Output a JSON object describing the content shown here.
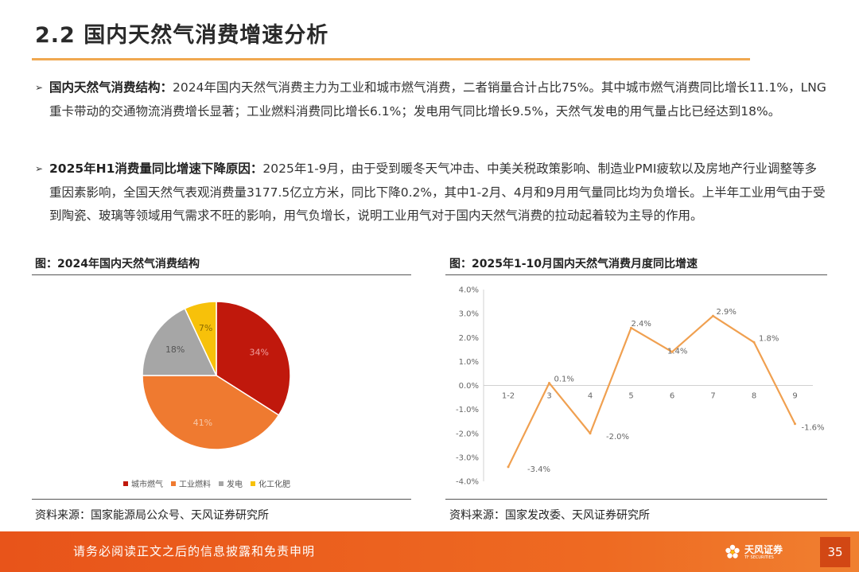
{
  "slide": {
    "title": "2.2 国内天然气消费增速分析",
    "page_number": "35"
  },
  "bullets": [
    {
      "head": "国内天然气消费结构：",
      "body": "2024年国内天然气消费主力为工业和城市燃气消费，二者销量合计占比75%。其中城市燃气消费同比增长11.1%，LNG重卡带动的交通物流消费增长显著；工业燃料消费同比增长6.1%；发电用气同比增长9.5%，天然气发电的用气量占比已经达到18%。"
    },
    {
      "head": "2025年H1消费量同比增速下降原因：",
      "body": "2025年1-9月，由于受到暖冬天气冲击、中美关税政策影响、制造业PMI疲软以及房地产行业调整等多重因素影响，全国天然气表观消费量3177.5亿立方米，同比下降0.2%，其中1-2月、4月和9月用气量同比均为负增长。上半年工业用气由于受到陶瓷、玻璃等领域用气需求不旺的影响，用气负增长，说明工业用气对于国内天然气消费的拉动起着较为主导的作用。"
    }
  ],
  "figures": {
    "left": {
      "caption": "图：2024年国内天然气消费结构",
      "source": "资料来源：国家能源局公众号、天风证券研究所"
    },
    "right": {
      "caption": "图：2025年1-10月国内天然气消费月度同比增速",
      "source": "资料来源：国家发改委、天风证券研究所"
    }
  },
  "footer": {
    "disclaimer": "请务必阅读正文之后的信息披露和免责申明",
    "logo_cn": "天风证券",
    "logo_en": "TF SECURITIES"
  },
  "chart_data": [
    {
      "type": "pie",
      "labels": [
        "城市燃气",
        "工业燃料",
        "发电",
        "化工化肥"
      ],
      "values": [
        34,
        41,
        18,
        7
      ],
      "data_labels": [
        "34%",
        "41%",
        "18%",
        "7%"
      ],
      "colors": [
        "#c0180c",
        "#ef7a30",
        "#a6a6a6",
        "#f7c10a"
      ],
      "legend_position": "bottom"
    },
    {
      "type": "line",
      "categories": [
        "1-2",
        "3",
        "4",
        "5",
        "6",
        "7",
        "8",
        "9"
      ],
      "series": [
        {
          "values": [
            -3.4,
            0.1,
            -2.0,
            2.4,
            1.4,
            2.9,
            1.8,
            -1.6
          ]
        }
      ],
      "data_labels": [
        "-3.4%",
        "0.1%",
        "-2.0%",
        "2.4%",
        "1.4%",
        "2.9%",
        "1.8%",
        "-1.6%"
      ],
      "y_ticks": [
        "4.0%",
        "3.0%",
        "2.0%",
        "1.0%",
        "0.0%",
        "-1.0%",
        "-2.0%",
        "-3.0%",
        "-4.0%"
      ],
      "ylim": [
        -4,
        4
      ],
      "line_color": "#f0a050",
      "grid": false
    }
  ]
}
